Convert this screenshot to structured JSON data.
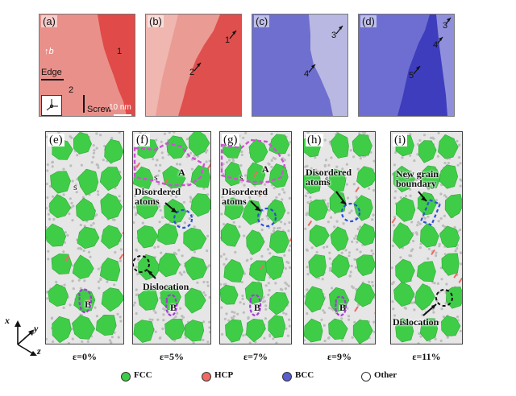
{
  "top_panels": [
    {
      "label": "(a)",
      "color_light": "#e9908a",
      "color_dark": "#e04a48",
      "numbers": [
        "1",
        "2"
      ]
    },
    {
      "label": "(b)",
      "color_light": "#ea9b94",
      "color_dark": "#df4f4d",
      "numbers": [
        "1",
        "2"
      ]
    },
    {
      "label": "(c)",
      "color_light": "#a6a6dc",
      "color_dark": "#6f6fcf",
      "numbers": [
        "3",
        "4"
      ]
    },
    {
      "label": "(d)",
      "color_light": "#7b7bd6",
      "color_dark": "#3d3dbd",
      "numbers": [
        "3",
        "4",
        "5"
      ]
    }
  ],
  "panel_a_text": {
    "b_axis": "b",
    "edge": "Edge",
    "screw": "Screw",
    "scale": "10 nm",
    "axes_y": "y",
    "axes_x": "x",
    "axes_z": "z"
  },
  "sim_panels": [
    {
      "label": "(e)",
      "strain": "ε=0%",
      "region_s": "s",
      "region_b": "B"
    },
    {
      "label": "(f)",
      "strain": "ε=5%",
      "region_a": "A",
      "region_s": "s",
      "region_b": "B",
      "ann1": "Disordered\natoms",
      "ann2": "Dislocation"
    },
    {
      "label": "(g)",
      "strain": "ε=7%",
      "region_a": "A",
      "region_s": "s",
      "region_b": "B",
      "ann1": "Disordered\natoms"
    },
    {
      "label": "(h)",
      "strain": "ε=9%",
      "region_s": "s",
      "region_b": "B",
      "ann1": "Disordered\natoms"
    },
    {
      "label": "(i)",
      "strain": "ε=11%",
      "region_s": "s",
      "ann1": "New grain\nboundary",
      "ann2": "Dislocation"
    }
  ],
  "axes": {
    "x": "x",
    "y": "y",
    "z": "z"
  },
  "legend": [
    {
      "label": "FCC",
      "color": "#3fcd48"
    },
    {
      "label": "HCP",
      "color": "#ee6a62"
    },
    {
      "label": "BCC",
      "color": "#5b5ccf"
    },
    {
      "label": "Other",
      "color": "#ffffff"
    }
  ]
}
